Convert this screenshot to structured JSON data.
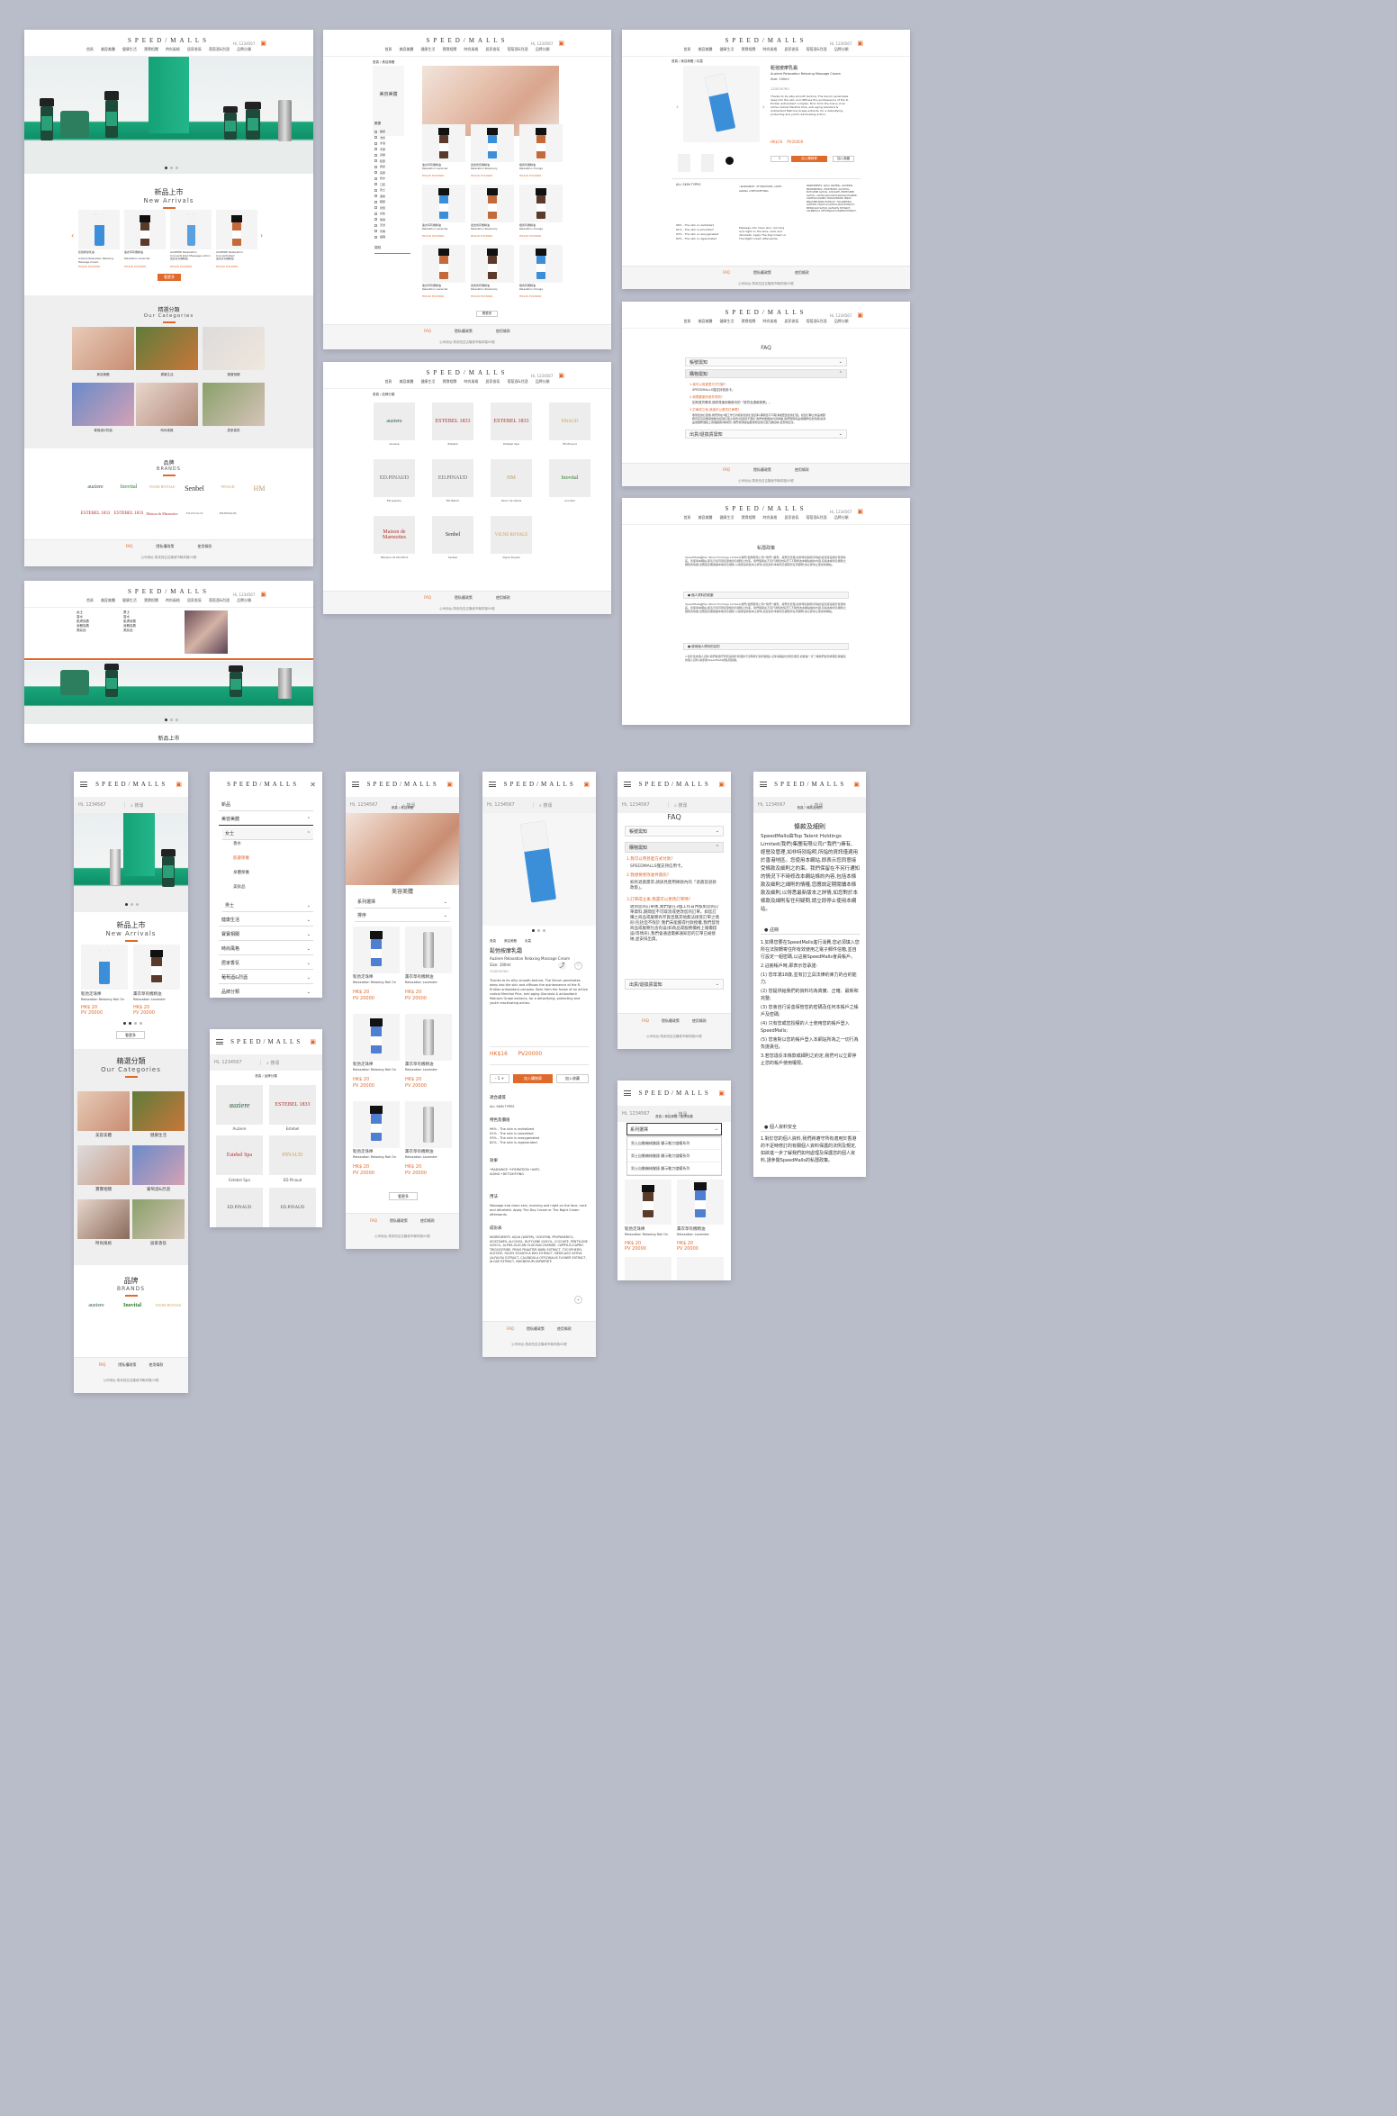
{
  "brand_logo": "SPEED/MALLS",
  "colors": {
    "accent": "#e06a2c",
    "background": "#b9bcc9"
  },
  "desktop_nav": [
    "首頁",
    "美容美體",
    "健康生活",
    "寶寶相關",
    "時尚風格",
    "居家香氛",
    "葡萄酒&烈酒",
    "品牌分類"
  ],
  "account": "Hi, 1234567",
  "search_placeholder": "搜尋",
  "home": {
    "new_arrivals_cn": "新品上市",
    "new_arrivals_en": "New Arrivals",
    "categories_cn": "精選分類",
    "categories_en": "Our Categories",
    "category_labels": [
      "美容美體",
      "健康生活",
      "寶寶相關",
      "葡萄酒&烈酒",
      "時尚風格",
      "居家香氛"
    ],
    "brands_cn": "品牌",
    "brands_en": "BRANDS",
    "more": "看更多",
    "products": [
      {
        "name": "鬆弛按摩乳霜",
        "en": "Auziere Relaxation Relaxing Massage Cream",
        "price": "HK$16",
        "pv": "PV20000"
      },
      {
        "name": "薰衣草有機精油",
        "en": "Relaxation Lavender",
        "price": "HK$16",
        "pv": "PV20000"
      },
      {
        "name": "AUZIERE Relaxation Concentrated Massage Lotion",
        "en": "迷迭香有機精油",
        "price": "HK$16",
        "pv": "PV20000"
      },
      {
        "name": "AUZIERE Relaxation Concentrated",
        "en": "迷迭香有機精油",
        "price": "HK$16",
        "pv": "PV20000"
      }
    ]
  },
  "brands": [
    "auziere",
    "Inovital",
    "VIGNE ROYALE",
    "Senbel",
    "PINAUD",
    "HM",
    "ESTEBEL 1833",
    "ESTEBEL 1833",
    "Maison de Marmottes",
    "ED.PINAUD",
    "ED.PINAUD"
  ],
  "brand_page": {
    "breadcrumb": "首頁 / 品牌分類",
    "items": [
      "Auziere",
      "Estebel",
      "Estebel Spa",
      "ED.Pinaud",
      "ED Jewelry",
      "ED.Watch",
      "Henri de Valois",
      "Inovital",
      "Marquis de Montfort",
      "Senbel",
      "Vigne Royale"
    ]
  },
  "category_page": {
    "breadcrumb": "首頁 / 美容美體",
    "title": "美容美體",
    "filter_title": "篩選",
    "filters": [
      "護膚",
      "洗髮",
      "沐浴",
      "手部",
      "身體",
      "臉部",
      "按摩",
      "唇部",
      "香水",
      "口腔",
      "男士",
      "運動",
      "眼部",
      "髮型",
      "彩妝",
      "保健",
      "天然",
      "有機",
      "護理"
    ],
    "price_label": "價錢",
    "more": "看更多",
    "products": [
      {
        "name": "薰衣草有機精油",
        "en": "Relaxation Lavender",
        "price": "HK$16",
        "pv": "PV20000"
      },
      {
        "name": "迷迭香有機精油",
        "en": "Relaxation Rosemary",
        "price": "HK$16",
        "pv": "PV20000"
      },
      {
        "name": "橙香有機精油",
        "en": "Relaxation Orange",
        "price": "HK$16",
        "pv": "PV20000"
      }
    ]
  },
  "product_page": {
    "breadcrumb": "首頁 / 美容美體 / 乳霜",
    "title": "鬆弛按摩乳霜",
    "subtitle": "Auziere Relaxation Relaxing Massage Cream",
    "size": "Size: 100ml",
    "sku": "22DE5678G",
    "desc": "Thanks to its silky smooth texture, The Serum penetrates deep into the skin and diffuses the quintessence of the R-Eridian antioxidant complex. Born from the fusion of an active radical Menthol Pine, anti-aging Glandula & antioxidant Matrone Grape extracts, for a detoxifying, protecting and youth reactivating action.",
    "price": "HK$16",
    "pv": "PV20000",
    "qty": "1",
    "add_cart": "加入購物車",
    "wishlist": "加入收藏",
    "tabs": [
      "適合膚質",
      "特色及價值",
      "效果",
      "用法",
      "成份表"
    ],
    "skin": "ALL SKIN TYPES",
    "effect": "•RADIANCE •HYDRATION •ANTI-AGING •DETOXIFYING",
    "stats": [
      "96% - The skin is revitalized",
      "91% - The skin is smoothed",
      "93% - The skin is reoxygenated",
      "82% - The skin is regenerated"
    ],
    "usage": "Massage into clean skin, morning and night on the face, neck and décolleté. Apply The Day Cream or The Night Cream afterwards.",
    "ingredients": "INGREDIENTS: AQUA (WATER), GLYCERIN, PROPANEDIOL, ISOSTEARYL ALCOHOL, BUTYLENE GLYCOL, COCOATE, PENTYLENE GLYCOL, ALPHA-GLUCAN OLIGOSACCHARIDE, CAPRYLIC/CAPRIC TRIGLYCERIDE, PINUS PINASTER BARK EXTRACT, TOCOPHERYL ACETATE, FAGUS SYLVATICA BUD EXTRACT, MEDICAGO SATIVA (ALFALFA) EXTRACT, CALENDULA OFFICINALIS FLOWER EXTRACT, ALGAE EXTRACT, MAGNESIUM ASPARTATE"
  },
  "faq": {
    "title": "FAQ",
    "sections": [
      "帳號需知",
      "購物需知",
      "出貨/退換貨需知"
    ],
    "q1": "1.我可以用甚麼方式付款?",
    "a1": "SPEEDMALLS僅支持信用卡。",
    "q2": "2.我想要更改收件資訊?",
    "a2": "如有退貨需求,請詳見使用條款內的「退貨及退款政策」。",
    "q3": "3.訂單成立後,我還可以更改訂單嗎?",
    "a3": "收到您的訂單後,我們會在3個工作日內核對您的訂單資料,期間您不可取消或更改您的訂單。如您訂購之商品或服務有存貨且無其他無法接受訂單之情形(包括但不限於:我們未能獲得付款授權,我們發現商品或服務包含有誤(如商品或服務價格上報價錯誤)等情形),我們會通過電郵通知您的訂單已被接納,並安排出貨。"
  },
  "terms": {
    "title": "條款及細則",
    "intro": "SpeedMalls由Top Talent Holdings Limited(我們)集團有限公司(\"我們\")擁有、經營及管理,如非特別指明,所指的資訊僅適用於香港地區。您使用本網站,即表示您同意接受條款及細則之約束。我們保留在不另行通知的情況下不時修改本網站條約內容,包括本條款及細則之細則的情權,您應該定期閱讀本條款及細則,以得悉最新版本之詳情,如您對於本條款及細則有任何疑問,請立即停止使用本網站。",
    "s1": "● 註冊",
    "rules": [
      "1.如果您要在SpeedMalls進行消費,您必須填入您所在法院轉寄住所有效使用之電子郵件信箱,並自行設定一組密碼,以註冊SpeedMalls會員帳戶。",
      "2.註冊帳戶時,即表示您承諾:",
      "(1) 您年滿18歲,並有訂立具法律約束力的合約能力;",
      "(2) 您提供給我們的資料均為真實、正確、最新和完整;",
      "(3) 您會自行妥善保管您的密碼及任何本帳戶之帳戶及密碼;",
      "(4) 只有您或您授權的人士使用您的帳戶登入SpeedMalls;",
      "(5) 您會對以您的帳戶登入本網站所為之一切行為負擔責任。",
      "3.若您違反本條款或細則之約定,我們可以立即停止您的帳戶使用權限。"
    ],
    "s2": "● 個人資料安全",
    "privacy": "1.對於您的個人資料,我們將遵守所有適用於香港的不足時修訂的有關個人資料保護的法例及規定,如欲進一步了解我們如何處理及保護您的個人資料,請參閱SpeedMalls的私隱政策。"
  },
  "privacy": {
    "title": "私隱政策",
    "s1": "● 個人資料的收集",
    "s2": "● 使用個人資料的目的"
  },
  "mobile": {
    "menu": [
      "新品",
      "美容美體",
      "健康生活",
      "寶寶相關",
      "時尚風格",
      "居家香氛",
      "葡萄酒&烈酒",
      "品牌分類"
    ],
    "submenu_title": "女士",
    "submenu": [
      "香水",
      "肌膚保養",
      "身體保養",
      "美妝品"
    ],
    "men": "男士",
    "sort": "系列選擇",
    "order": "排序",
    "sort_options": [
      "男士自動機械腕錶 顯示動力儲備系列",
      "男士自動機械腕錶 顯示動力儲備系列",
      "男士自動機械腕錶 顯示動力儲備系列"
    ],
    "price": "HK$ 20",
    "pv": "PV 20000",
    "product_a": "鬆弛走珠棒",
    "product_a_en": "Relaxation Relaxing Roll On",
    "product_b": "薰衣草有機精油",
    "product_b_en": "Relaxation Lavender"
  },
  "footer": {
    "links": [
      "FAQ",
      "隱私權政策",
      "使用條款"
    ],
    "address": "公司地址:馬來西亞吉隆坡市聯邦路00號",
    "phone": "公司電話:+60-12-902-2345"
  }
}
